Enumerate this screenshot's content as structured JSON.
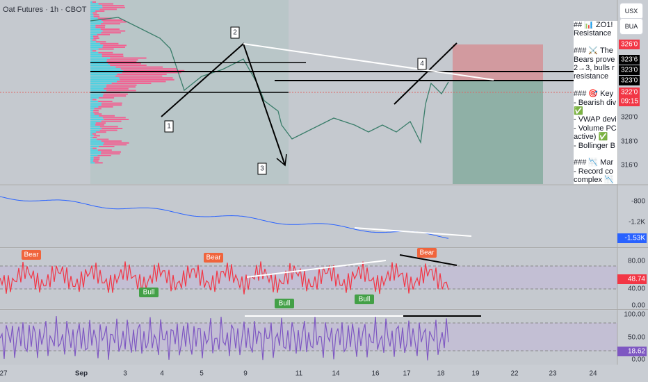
{
  "header": {
    "symbol": "Oat Futures · 1h · CBOT"
  },
  "buttons": [
    "USX",
    "BUA"
  ],
  "price_axis": [
    "326'0",
    "323'6",
    "323'0",
    "323'0",
    "322'0",
    "09:15",
    "320'0",
    "318'0",
    "316'0"
  ],
  "wave_labels": [
    "1",
    "2",
    "3",
    "4"
  ],
  "note": {
    "paragraphs": [
      [
        "## 📊 ZO1!",
        "Resistance"
      ],
      [
        "### ⚔️ The",
        "Bears prove",
        "2→3, bulls r",
        "resistance"
      ],
      [
        "### 🎯 Key",
        "- Bearish div",
        "✅",
        "- VWAP devi",
        "- Volume PC",
        "active) ✅",
        "- Bollinger B"
      ],
      [
        "### 📉 Mar",
        "- Record co",
        "complex 📉"
      ]
    ]
  },
  "volume_panel": {
    "axis": [
      "-800",
      "-1.2K",
      "-1.53K"
    ]
  },
  "rsi_panel": {
    "axis": [
      "80.00",
      "48.74",
      "40.00",
      "0.00"
    ],
    "signals": [
      "Bear",
      "Bear",
      "Bull",
      "Bull",
      "Bull",
      "Bear"
    ]
  },
  "stoch_panel": {
    "axis": [
      "100.00",
      "50.00",
      "18.62",
      "0.00"
    ]
  },
  "time_axis": [
    "27",
    "Sep",
    "3",
    "4",
    "5",
    "9",
    "11",
    "14",
    "16",
    "17",
    "18",
    "19",
    "22",
    "23",
    "24"
  ]
}
